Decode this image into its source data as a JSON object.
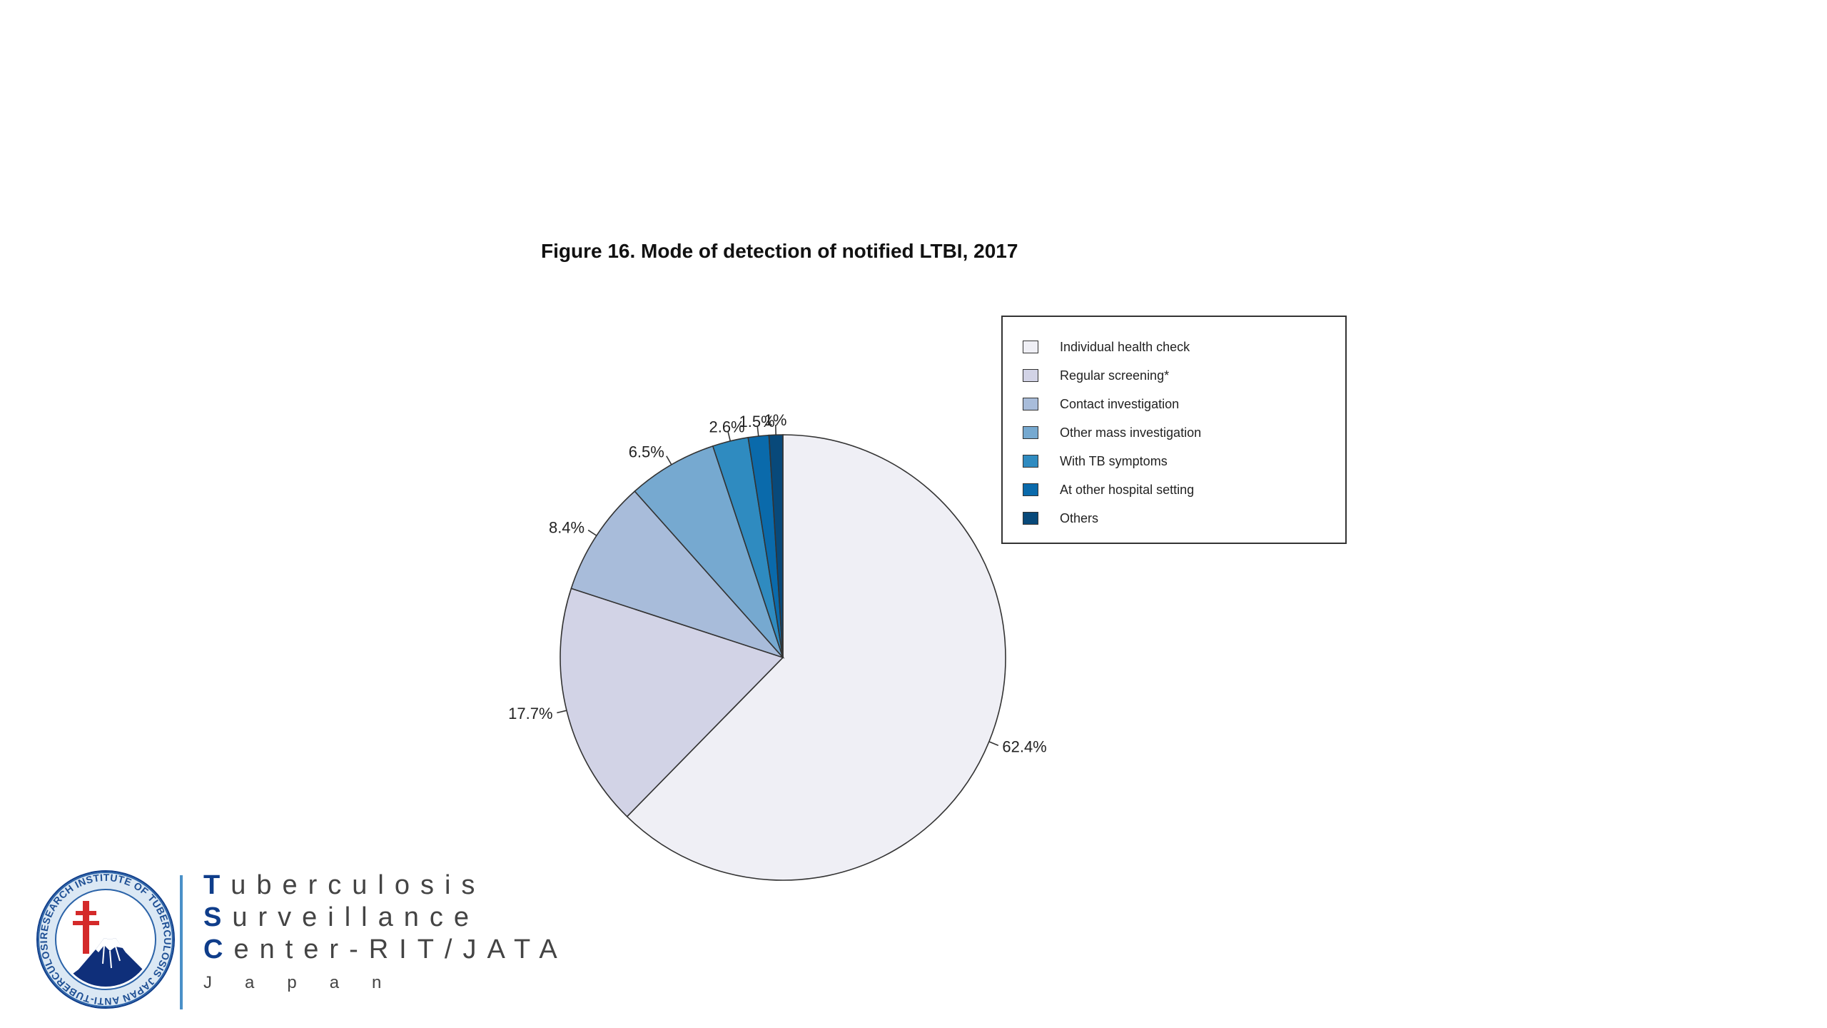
{
  "chart_data": {
    "type": "pie",
    "title": "Figure 16. Mode of detection of notified LTBI, 2017",
    "slices": [
      {
        "label": "Individual health check",
        "value": 62.4,
        "display": "62.4%",
        "color": "#efeff5"
      },
      {
        "label": "Regular screening*",
        "value": 17.7,
        "display": "17.7%",
        "color": "#d2d3e6"
      },
      {
        "label": "Contact investigation",
        "value": 8.4,
        "display": "8.4%",
        "color": "#a8bcda"
      },
      {
        "label": "Other mass investigation",
        "value": 6.5,
        "display": "6.5%",
        "color": "#76a9d0"
      },
      {
        "label": "With TB symptoms",
        "value": 2.6,
        "display": "2.6%",
        "color": "#2f8bc0"
      },
      {
        "label": "At other hospital setting",
        "value": 1.5,
        "display": "1.5%",
        "color": "#0a6aab"
      },
      {
        "label": "Others",
        "value": 1,
        "display": "1%",
        "color": "#08497a"
      }
    ],
    "legend_position": "top-right"
  },
  "logo": {
    "lines": [
      {
        "initial": "T",
        "rest": "uberculosis"
      },
      {
        "initial": "S",
        "rest": "urveillance"
      },
      {
        "initial": "C",
        "rest": "enter-RIT/JATA"
      }
    ],
    "country": "Japan",
    "seal_text": "RESEARCH INSTITUTE OF TUBERCULOSIS JAPAN ANTI-TUBERCULOSIS ASSOCIATION",
    "colors": {
      "navy": "#0f3d8a",
      "light_blue": "#4a90c8"
    }
  }
}
